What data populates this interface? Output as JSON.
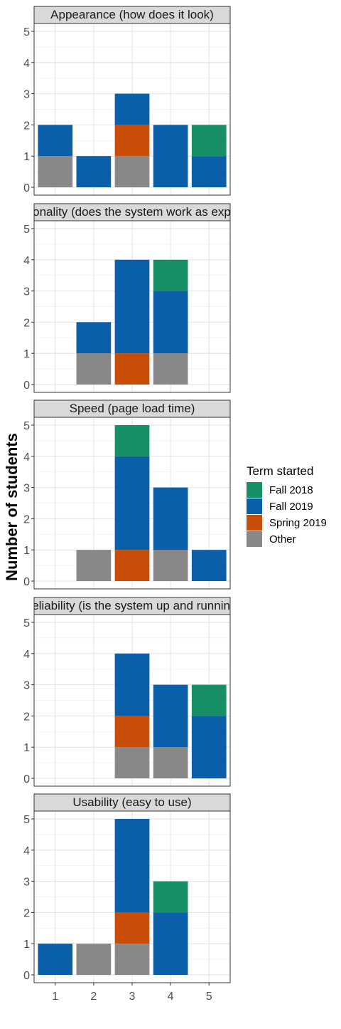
{
  "chart_data": {
    "type": "bar",
    "stacked": true,
    "ylabel": "Number of students",
    "xlabel": "",
    "categories": [
      "1",
      "2",
      "3",
      "4",
      "5"
    ],
    "ylim": [
      0,
      5
    ],
    "yticks": [
      "0",
      "1",
      "2",
      "3",
      "4",
      "5"
    ],
    "grid": true,
    "legend": {
      "title": "Term started",
      "placement": "right",
      "items": [
        {
          "name": "Fall 2018",
          "color": "#168f66"
        },
        {
          "name": "Fall 2019",
          "color": "#0b5ea8"
        },
        {
          "name": "Spring 2019",
          "color": "#c84d07"
        },
        {
          "name": "Other",
          "color": "#888888"
        }
      ]
    },
    "stack_order_bottom_to_top": [
      "Other",
      "Spring 2019",
      "Fall 2019",
      "Fall 2018"
    ],
    "panels": [
      {
        "title": "Appearance (how does it look)",
        "series": [
          {
            "name": "Other",
            "values": [
              1,
              0,
              1,
              0,
              0
            ]
          },
          {
            "name": "Spring 2019",
            "values": [
              0,
              0,
              1,
              0,
              0
            ]
          },
          {
            "name": "Fall 2019",
            "values": [
              1,
              1,
              1,
              2,
              1
            ]
          },
          {
            "name": "Fall 2018",
            "values": [
              0,
              0,
              0,
              0,
              1
            ]
          }
        ]
      },
      {
        "title": "Functionality (does the system work as expected)",
        "series": [
          {
            "name": "Other",
            "values": [
              0,
              1,
              0,
              1,
              0
            ]
          },
          {
            "name": "Spring 2019",
            "values": [
              0,
              0,
              1,
              0,
              0
            ]
          },
          {
            "name": "Fall 2019",
            "values": [
              0,
              1,
              3,
              2,
              0
            ]
          },
          {
            "name": "Fall 2018",
            "values": [
              0,
              0,
              0,
              1,
              0
            ]
          }
        ]
      },
      {
        "title": "Speed (page load time)",
        "series": [
          {
            "name": "Other",
            "values": [
              0,
              1,
              0,
              1,
              0
            ]
          },
          {
            "name": "Spring 2019",
            "values": [
              0,
              0,
              1,
              0,
              0
            ]
          },
          {
            "name": "Fall 2019",
            "values": [
              0,
              0,
              3,
              2,
              1
            ]
          },
          {
            "name": "Fall 2018",
            "values": [
              0,
              0,
              1,
              0,
              0
            ]
          }
        ]
      },
      {
        "title": "Reliability (is the system up and running)",
        "series": [
          {
            "name": "Other",
            "values": [
              0,
              0,
              1,
              1,
              0
            ]
          },
          {
            "name": "Spring 2019",
            "values": [
              0,
              0,
              1,
              0,
              0
            ]
          },
          {
            "name": "Fall 2019",
            "values": [
              0,
              0,
              2,
              2,
              2
            ]
          },
          {
            "name": "Fall 2018",
            "values": [
              0,
              0,
              0,
              0,
              1
            ]
          }
        ]
      },
      {
        "title": "Usability (easy to use)",
        "series": [
          {
            "name": "Other",
            "values": [
              0,
              1,
              1,
              0,
              0
            ]
          },
          {
            "name": "Spring 2019",
            "values": [
              0,
              0,
              1,
              0,
              0
            ]
          },
          {
            "name": "Fall 2019",
            "values": [
              1,
              0,
              3,
              2,
              0
            ]
          },
          {
            "name": "Fall 2018",
            "values": [
              0,
              0,
              0,
              1,
              0
            ]
          }
        ]
      }
    ]
  }
}
